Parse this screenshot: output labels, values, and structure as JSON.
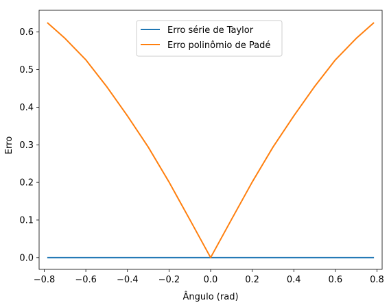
{
  "chart_data": {
    "type": "line",
    "title": "",
    "xlabel": "Ângulo (rad)",
    "ylabel": "Erro",
    "xlim": [
      -0.8247,
      0.8247
    ],
    "ylim": [
      -0.0313,
      0.6578
    ],
    "xticks": [
      -0.8,
      -0.6,
      -0.4,
      -0.2,
      0.0,
      0.2,
      0.4,
      0.6,
      0.8
    ],
    "xtick_labels": [
      "−0.8",
      "−0.6",
      "−0.4",
      "−0.2",
      "0.0",
      "0.2",
      "0.4",
      "0.6",
      "0.8"
    ],
    "yticks": [
      0.0,
      0.1,
      0.2,
      0.3,
      0.4,
      0.5,
      0.6
    ],
    "ytick_labels": [
      "0.0",
      "0.1",
      "0.2",
      "0.3",
      "0.4",
      "0.5",
      "0.6"
    ],
    "grid": false,
    "legend_position": "upper-center",
    "series": [
      {
        "name": "Erro série de Taylor",
        "color": "#1f77b4",
        "x": [
          -0.7854,
          -0.6,
          -0.4,
          -0.2,
          0.0,
          0.2,
          0.4,
          0.6,
          0.7854
        ],
        "y": [
          0.0,
          0.0,
          0.0,
          0.0,
          0.0,
          0.0,
          0.0,
          0.0,
          0.0
        ]
      },
      {
        "name": "Erro polinômio de Padé",
        "color": "#ff7f0e",
        "x": [
          -0.7854,
          -0.7,
          -0.6,
          -0.5,
          -0.4,
          -0.3,
          -0.2,
          -0.1,
          0.0,
          0.1,
          0.2,
          0.3,
          0.4,
          0.5,
          0.6,
          0.7,
          0.7854
        ],
        "y": [
          0.625,
          0.583,
          0.526,
          0.455,
          0.377,
          0.294,
          0.201,
          0.101,
          0.0,
          0.101,
          0.201,
          0.294,
          0.377,
          0.455,
          0.526,
          0.583,
          0.625
        ]
      }
    ]
  }
}
